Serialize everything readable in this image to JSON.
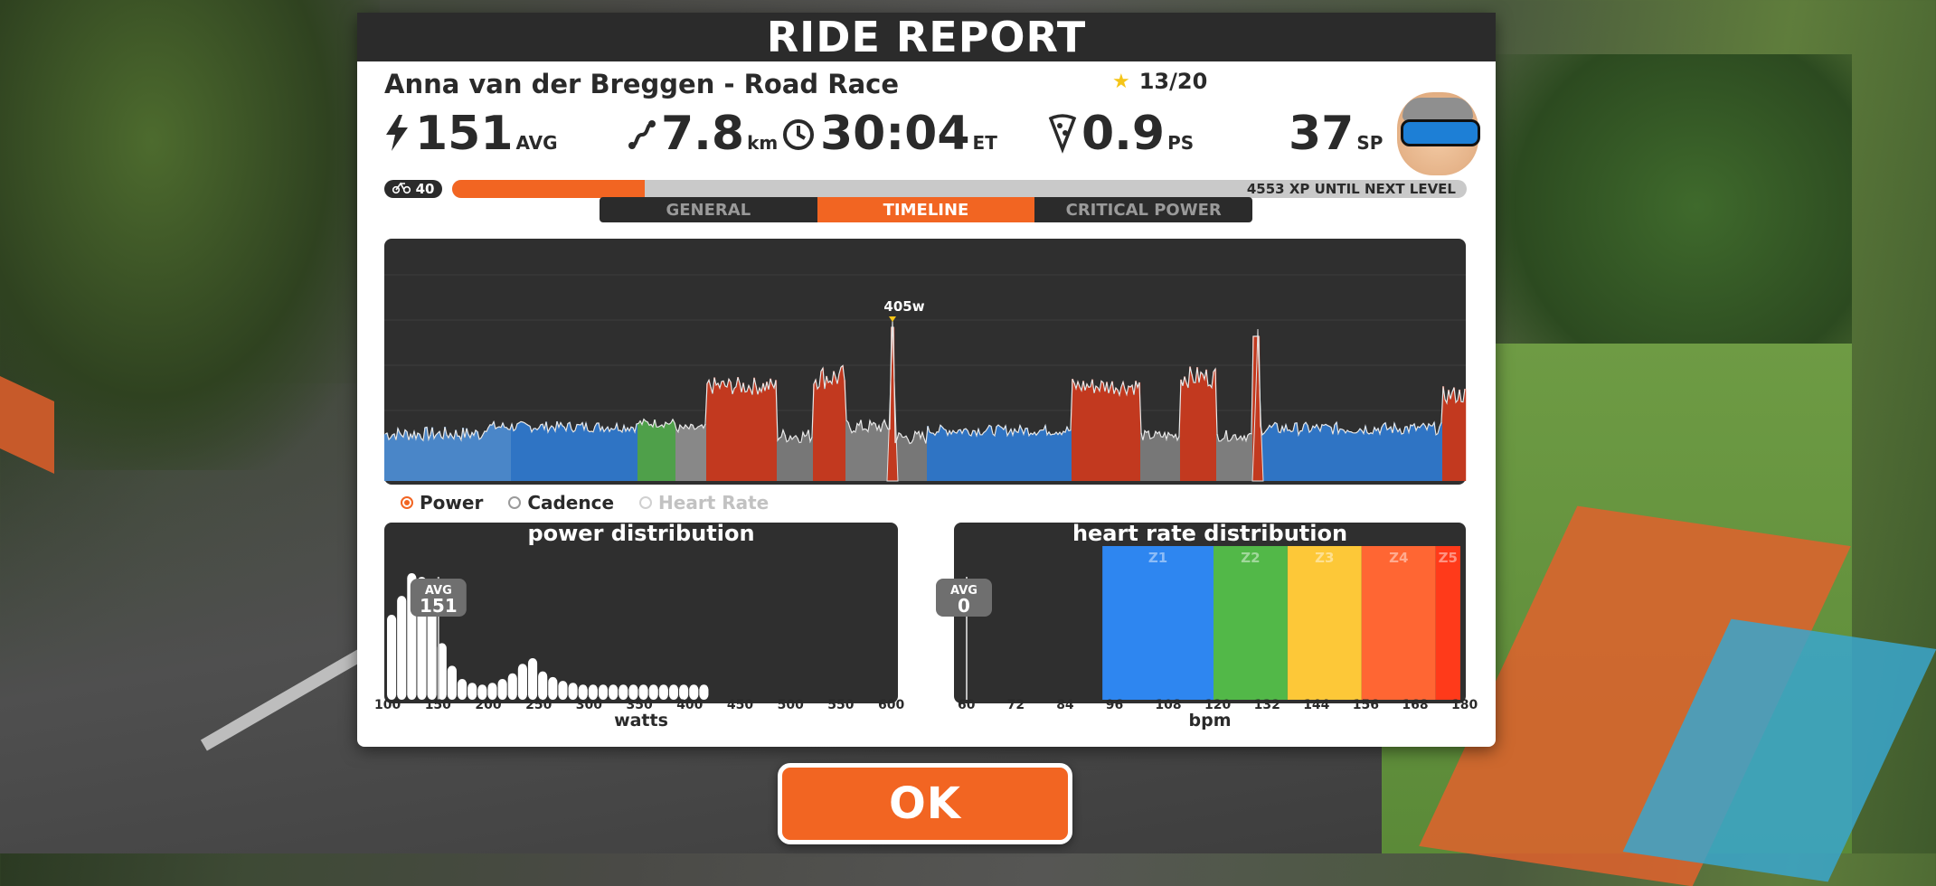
{
  "header": {
    "title": "RIDE REPORT"
  },
  "ride": {
    "name": "Anna van der Breggen - Road Race",
    "stars": "13/20"
  },
  "stats": {
    "power": {
      "icon": "lightning-icon",
      "value": "151",
      "unit": "AVG"
    },
    "distance": {
      "icon": "route-icon",
      "value": "7.8",
      "unit": "km"
    },
    "time": {
      "icon": "clock-icon",
      "value": "30:04",
      "unit": "ET"
    },
    "pizza": {
      "icon": "pizza-icon",
      "value": "0.9",
      "unit": "PS"
    },
    "sweat": {
      "value": "37",
      "unit": "SP"
    }
  },
  "level": {
    "number": "40",
    "xp_progress": 0.19,
    "xp_text": "4553 XP UNTIL NEXT LEVEL"
  },
  "tabs": [
    {
      "label": "GENERAL",
      "active": false
    },
    {
      "label": "TIMELINE",
      "active": true
    },
    {
      "label": "CRITICAL POWER",
      "active": false
    }
  ],
  "timeline": {
    "peak_label": "405w"
  },
  "radios": [
    {
      "label": "Power",
      "selected": true,
      "enabled": true
    },
    {
      "label": "Cadence",
      "selected": false,
      "enabled": true
    },
    {
      "label": "Heart Rate",
      "selected": false,
      "enabled": false
    }
  ],
  "colors": {
    "accent": "#f26522",
    "panel_dark": "#2f2f2f",
    "zone_blue": "#2e86f0",
    "zone_green": "#52b848",
    "zone_yellow": "#fdc838",
    "zone_orange": "#ff6633",
    "zone_red": "#ff3a1a"
  },
  "chart_data": [
    {
      "type": "bar",
      "title": "power distribution",
      "xlabel": "watts",
      "x_ticks": [
        "100",
        "150",
        "200",
        "250",
        "300",
        "350",
        "400",
        "450",
        "500",
        "550",
        "600"
      ],
      "xlim": [
        100,
        600
      ],
      "categories": [
        100,
        110,
        120,
        130,
        140,
        150,
        160,
        170,
        180,
        190,
        200,
        210,
        220,
        230,
        240,
        250,
        260,
        270,
        280,
        290,
        300,
        310,
        320,
        330,
        340,
        350,
        360,
        370,
        380,
        390,
        400,
        410
      ],
      "values": [
        0.45,
        0.55,
        0.67,
        0.65,
        0.52,
        0.3,
        0.18,
        0.11,
        0.09,
        0.08,
        0.09,
        0.11,
        0.14,
        0.19,
        0.22,
        0.15,
        0.12,
        0.1,
        0.09,
        0.08,
        0.08,
        0.08,
        0.08,
        0.08,
        0.08,
        0.08,
        0.08,
        0.08,
        0.08,
        0.08,
        0.08,
        0.08
      ],
      "avg": {
        "label": "AVG",
        "value": "151"
      }
    },
    {
      "type": "bar",
      "title": "heart rate distribution",
      "xlabel": "bpm",
      "x_ticks": [
        "60",
        "72",
        "84",
        "96",
        "108",
        "120",
        "132",
        "144",
        "156",
        "168",
        "180"
      ],
      "xlim": [
        60,
        180
      ],
      "zones": [
        {
          "name": "Z1",
          "from": 93,
          "to": 120,
          "color": "#2e86f0"
        },
        {
          "name": "Z2",
          "from": 120,
          "to": 138,
          "color": "#52b848"
        },
        {
          "name": "Z3",
          "from": 138,
          "to": 156,
          "color": "#fdc838"
        },
        {
          "name": "Z4",
          "from": 156,
          "to": 174,
          "color": "#ff6633"
        },
        {
          "name": "Z5",
          "from": 174,
          "to": 180,
          "color": "#ff3a1a"
        }
      ],
      "avg": {
        "label": "AVG",
        "value": "0"
      }
    }
  ],
  "ok_button": {
    "label": "OK"
  }
}
